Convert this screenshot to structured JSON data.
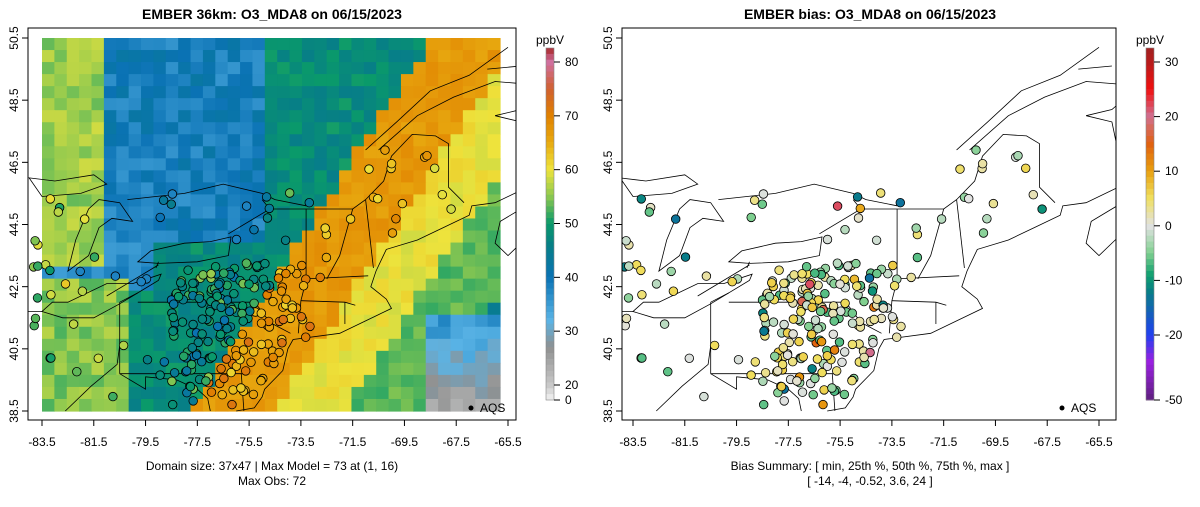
{
  "chart_data": [
    {
      "type": "heatmap",
      "title": "EMBER 36km: O3_MDA8 on 06/15/2023",
      "xlabel": "",
      "ylabel": "",
      "xticks": [
        "-83.5",
        "-81.5",
        "-79.5",
        "-77.5",
        "-75.5",
        "-73.5",
        "-71.5",
        "-69.5",
        "-67.5",
        "-65.5"
      ],
      "yticks": [
        "38.5",
        "40.5",
        "42.5",
        "44.5",
        "46.5",
        "48.5",
        "50.5"
      ],
      "xlim": [
        -83.5,
        -65.5
      ],
      "ylim": [
        38.5,
        50.5
      ],
      "colorbar": {
        "unit": "ppbV",
        "ticks": [
          "0",
          "20",
          "30",
          "40",
          "50",
          "60",
          "70",
          "80"
        ],
        "range": [
          0,
          82
        ]
      },
      "legend": {
        "label": "AQS",
        "placement": "bottom-right"
      },
      "footer": [
        "Domain size: 37x47 | Max Model = 73 at (1, 16)",
        "Max Obs: 72"
      ],
      "max_model": 73,
      "max_obs": 72
    },
    {
      "type": "scatter",
      "title": "EMBER bias: O3_MDA8 on 06/15/2023",
      "xticks": [
        "-83.5",
        "-81.5",
        "-79.5",
        "-77.5",
        "-75.5",
        "-73.5",
        "-71.5",
        "-69.5",
        "-67.5",
        "-65.5"
      ],
      "yticks": [
        "38.5",
        "40.5",
        "42.5",
        "44.5",
        "46.5",
        "48.5",
        "50.5"
      ],
      "xlim": [
        -83.5,
        -65.5
      ],
      "ylim": [
        38.5,
        50.5
      ],
      "colorbar": {
        "unit": "ppbV",
        "ticks": [
          "30",
          "20",
          "10",
          "0",
          "-10",
          "-20",
          "-50"
        ],
        "range": [
          -50,
          32
        ]
      },
      "legend": {
        "label": "AQS",
        "placement": "bottom-right"
      },
      "footer": [
        "Bias Summary: [ min, 25th %, 50th %, 75th %, max ]",
        "[ -14,  -4,  -0.52,  3.6,  24 ]"
      ],
      "bias_summary": {
        "min": -14,
        "p25": -4,
        "p50": -0.52,
        "p75": 3.6,
        "max": 24
      }
    }
  ]
}
